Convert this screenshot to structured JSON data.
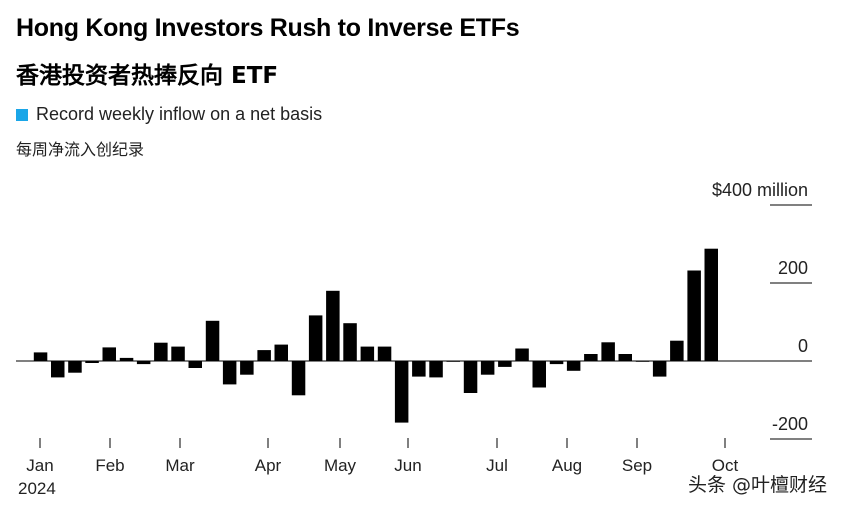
{
  "title": "Hong Kong Investors Rush to Inverse ETFs",
  "subtitle": "香港投资者热捧反向 ETF",
  "legend": {
    "label": "Record weekly inflow on a net basis",
    "label_cn": "每周净流入创纪录",
    "color": "#1aa6e8"
  },
  "watermark": "头条 @叶檀财经",
  "chart_data": {
    "type": "bar",
    "x_unit": "week",
    "year_label": "2024",
    "y_unit_label": "$400 million",
    "ylim": [
      -220,
      420
    ],
    "y_ticks": [
      400,
      200,
      0,
      -200
    ],
    "y_tick_labels": [
      "$400 million",
      "200",
      "0",
      "-200"
    ],
    "months": [
      "Jan",
      "Feb",
      "Mar",
      "Apr",
      "May",
      "Jun",
      "Jul",
      "Aug",
      "Sep",
      "Oct"
    ],
    "bar_color": "#000000",
    "highlight_color": "#1aa6e8",
    "highlight_index": 40,
    "values": [
      22,
      -42,
      -30,
      -5,
      35,
      8,
      -8,
      47,
      37,
      -18,
      103,
      -60,
      -35,
      28,
      42,
      -88,
      117,
      180,
      97,
      37,
      37,
      -158,
      -40,
      -42,
      0,
      -82,
      -35,
      -15,
      32,
      -68,
      -8,
      -25,
      18,
      48,
      18,
      0,
      -40,
      52,
      232,
      288
    ],
    "record_value": 288
  }
}
